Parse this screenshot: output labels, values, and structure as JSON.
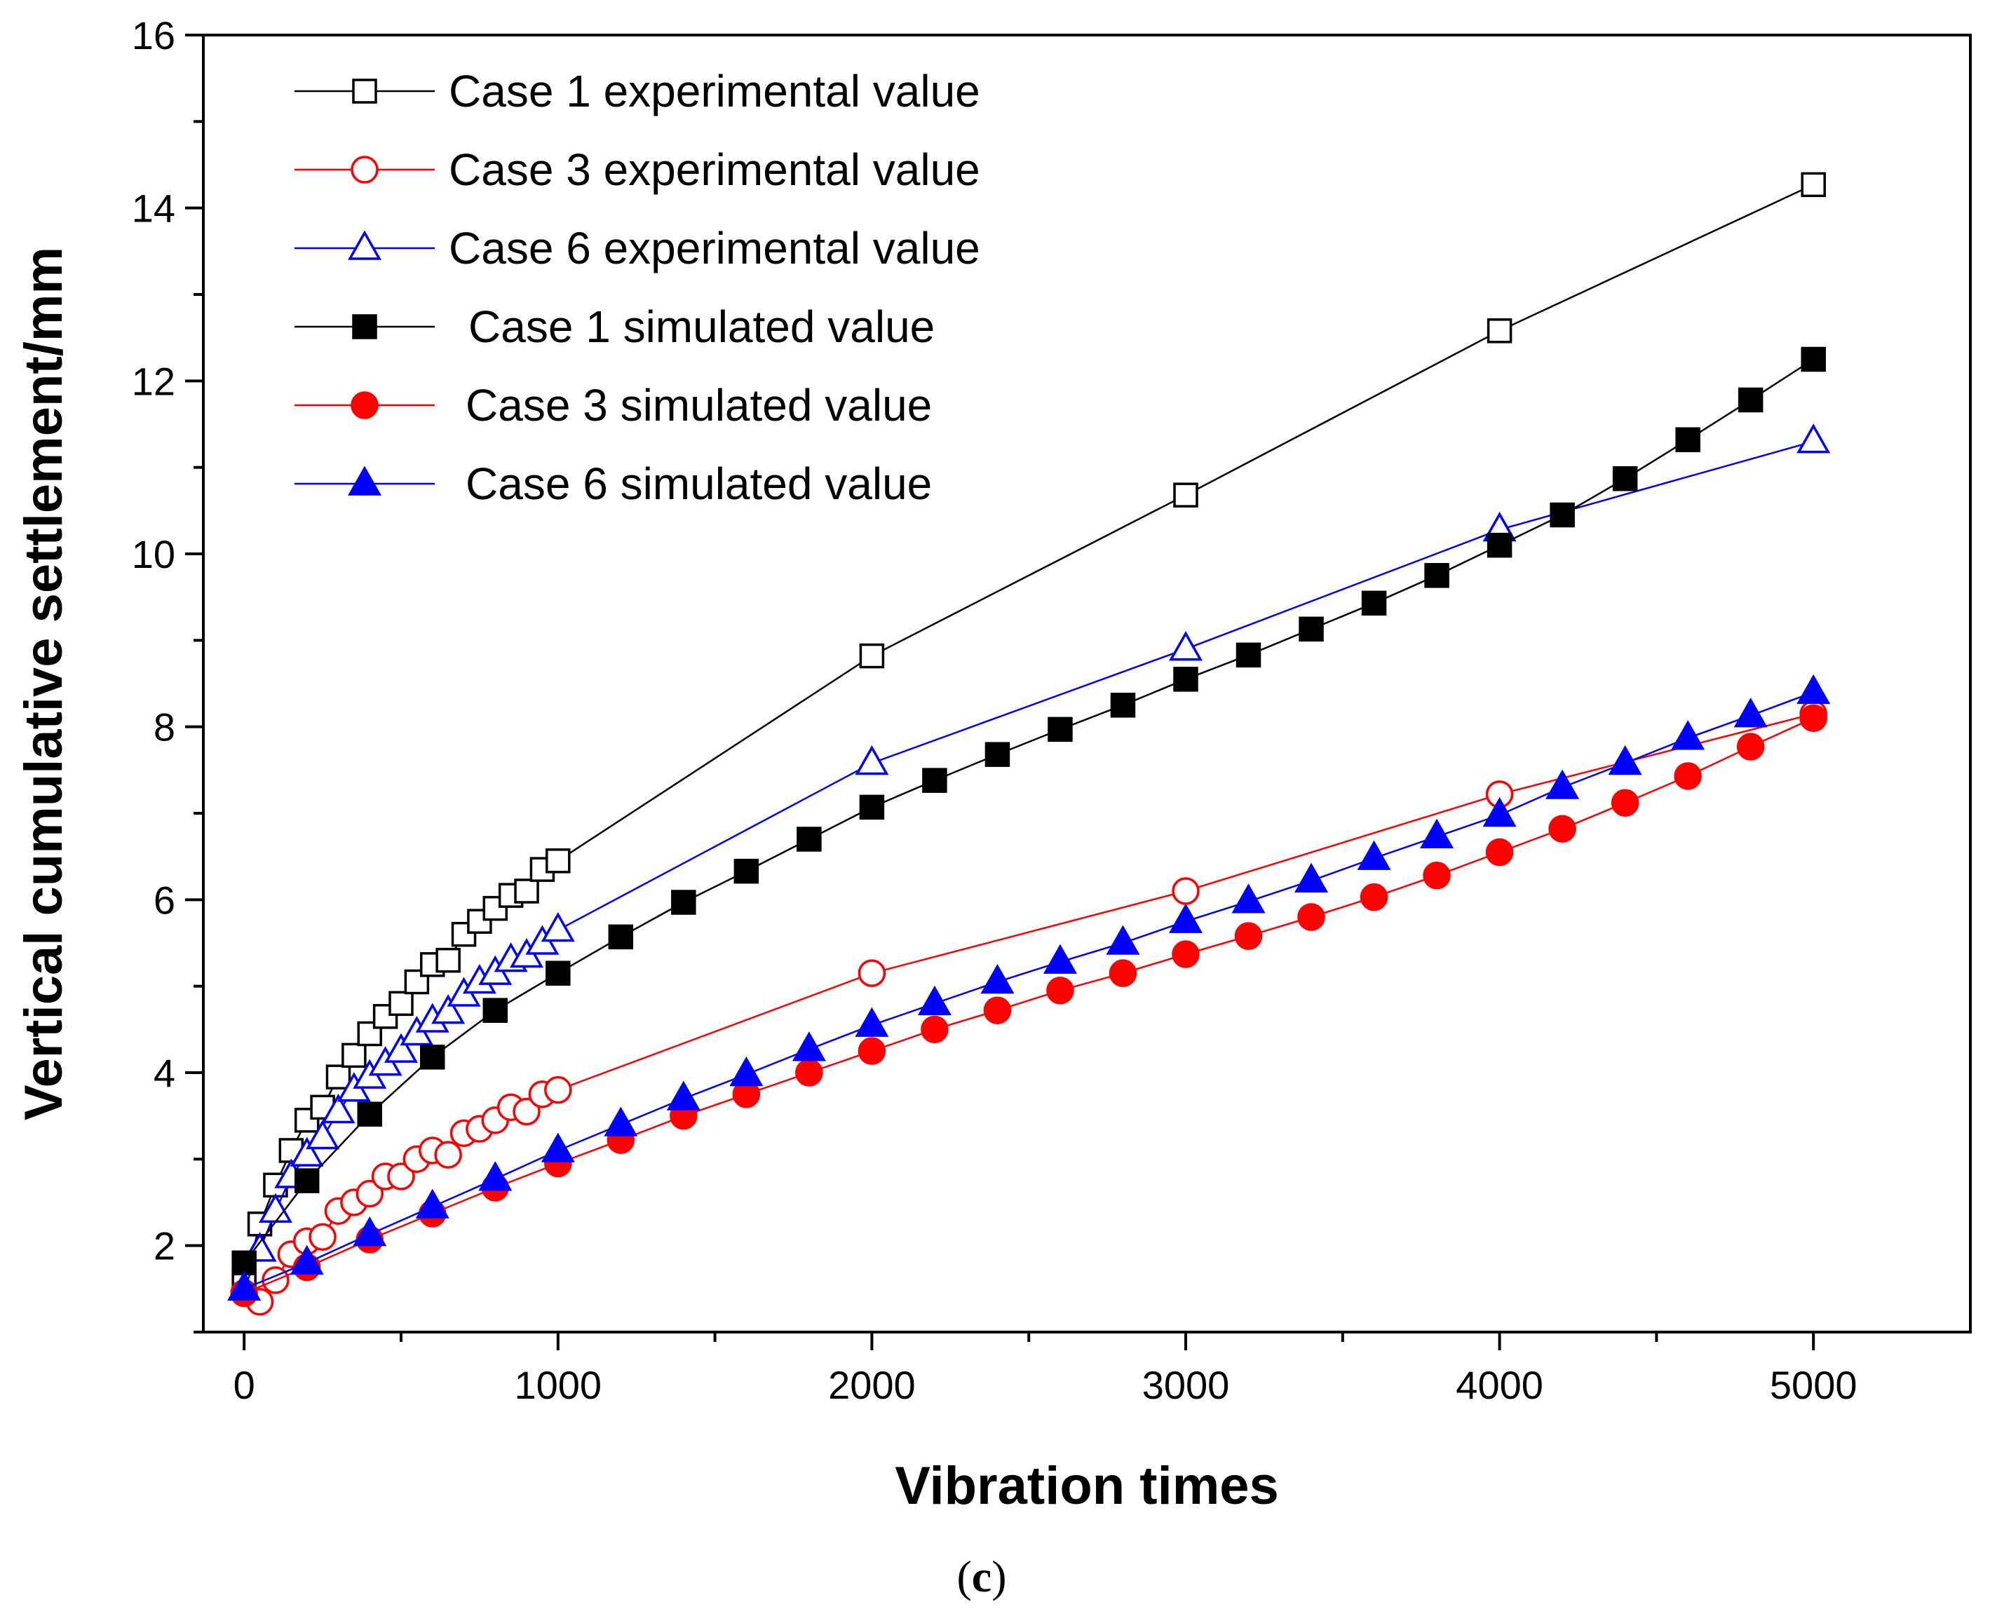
{
  "chart_data": {
    "type": "line",
    "xlabel": "Vibration times",
    "ylabel": "Vertical cumulative settlement/mm",
    "xlim": [
      -130,
      5500
    ],
    "ylim": [
      1,
      16
    ],
    "xticks": [
      0,
      1000,
      2000,
      3000,
      4000,
      5000
    ],
    "yticks": [
      2,
      4,
      6,
      8,
      10,
      12,
      14,
      16
    ],
    "caption": {
      "open": "(",
      "letter": "c",
      "close": ")"
    },
    "series": [
      {
        "name": "Case 1 experimental value",
        "color": "#000000",
        "marker": "square",
        "filled": false,
        "x": [
          0,
          50,
          100,
          150,
          200,
          250,
          300,
          350,
          400,
          450,
          500,
          550,
          600,
          650,
          700,
          750,
          800,
          850,
          900,
          950,
          1000,
          2000,
          3000,
          4000,
          5000
        ],
        "y": [
          1.55,
          2.25,
          2.7,
          3.1,
          3.45,
          3.6,
          3.95,
          4.2,
          4.45,
          4.65,
          4.8,
          5.05,
          5.25,
          5.3,
          5.6,
          5.75,
          5.9,
          6.05,
          6.1,
          6.35,
          6.45,
          8.82,
          10.68,
          12.58,
          14.27
        ]
      },
      {
        "name": "Case 3 experimental value",
        "color": "#ff0000",
        "marker": "circle",
        "filled": false,
        "x": [
          0,
          50,
          100,
          150,
          200,
          250,
          300,
          350,
          400,
          450,
          500,
          550,
          600,
          650,
          700,
          750,
          800,
          850,
          900,
          950,
          1000,
          2000,
          3000,
          4000,
          5000
        ],
        "y": [
          1.45,
          1.35,
          1.6,
          1.9,
          2.05,
          2.1,
          2.4,
          2.5,
          2.6,
          2.8,
          2.8,
          3.0,
          3.1,
          3.05,
          3.3,
          3.35,
          3.45,
          3.6,
          3.55,
          3.75,
          3.8,
          5.15,
          6.1,
          7.22,
          8.15
        ]
      },
      {
        "name": "Case 6 experimental value",
        "color": "#0000ff",
        "marker": "triangle",
        "filled": false,
        "x": [
          0,
          50,
          100,
          150,
          200,
          250,
          300,
          350,
          400,
          450,
          500,
          550,
          600,
          650,
          700,
          750,
          800,
          850,
          900,
          950,
          1000,
          2000,
          3000,
          4000,
          5000
        ],
        "y": [
          1.5,
          1.95,
          2.4,
          2.8,
          3.05,
          3.25,
          3.55,
          3.8,
          3.95,
          4.1,
          4.25,
          4.45,
          4.6,
          4.7,
          4.9,
          5.05,
          5.15,
          5.3,
          5.35,
          5.5,
          5.65,
          7.58,
          8.9,
          10.28,
          11.3
        ]
      },
      {
        "name": "Case 1 simulated value",
        "color": "#000000",
        "marker": "square",
        "filled": true,
        "x": [
          0,
          200,
          400,
          600,
          800,
          1000,
          1200,
          1400,
          1600,
          1800,
          2000,
          2200,
          2400,
          2600,
          2800,
          3000,
          3200,
          3400,
          3600,
          3800,
          4000,
          4200,
          4400,
          4600,
          4800,
          5000
        ],
        "y": [
          1.8,
          2.75,
          3.52,
          4.18,
          4.72,
          5.15,
          5.57,
          5.97,
          6.33,
          6.7,
          7.07,
          7.38,
          7.68,
          7.97,
          8.25,
          8.55,
          8.83,
          9.13,
          9.43,
          9.75,
          10.1,
          10.45,
          10.87,
          11.32,
          11.78,
          12.25
        ]
      },
      {
        "name": "Case 3 simulated value",
        "color": "#ff0000",
        "marker": "circle",
        "filled": true,
        "x": [
          0,
          200,
          400,
          600,
          800,
          1000,
          1200,
          1400,
          1600,
          1800,
          2000,
          2200,
          2400,
          2600,
          2800,
          3000,
          3200,
          3400,
          3600,
          3800,
          4000,
          4200,
          4400,
          4600,
          4800,
          5000
        ],
        "y": [
          1.45,
          1.75,
          2.07,
          2.37,
          2.67,
          2.95,
          3.22,
          3.5,
          3.75,
          4.0,
          4.25,
          4.5,
          4.72,
          4.95,
          5.15,
          5.37,
          5.58,
          5.8,
          6.03,
          6.28,
          6.55,
          6.82,
          7.12,
          7.43,
          7.77,
          8.1
        ]
      },
      {
        "name": "Case 6 simulated value",
        "color": "#0000ff",
        "marker": "triangle",
        "filled": true,
        "x": [
          0,
          200,
          400,
          600,
          800,
          1000,
          1200,
          1400,
          1600,
          1800,
          2000,
          2200,
          2400,
          2600,
          2800,
          3000,
          3200,
          3400,
          3600,
          3800,
          4000,
          4200,
          4400,
          4600,
          4800,
          5000
        ],
        "y": [
          1.5,
          1.8,
          2.13,
          2.45,
          2.77,
          3.1,
          3.4,
          3.7,
          3.98,
          4.27,
          4.55,
          4.8,
          5.05,
          5.28,
          5.5,
          5.75,
          5.98,
          6.22,
          6.48,
          6.73,
          6.98,
          7.3,
          7.58,
          7.87,
          8.13,
          8.4
        ]
      }
    ]
  }
}
